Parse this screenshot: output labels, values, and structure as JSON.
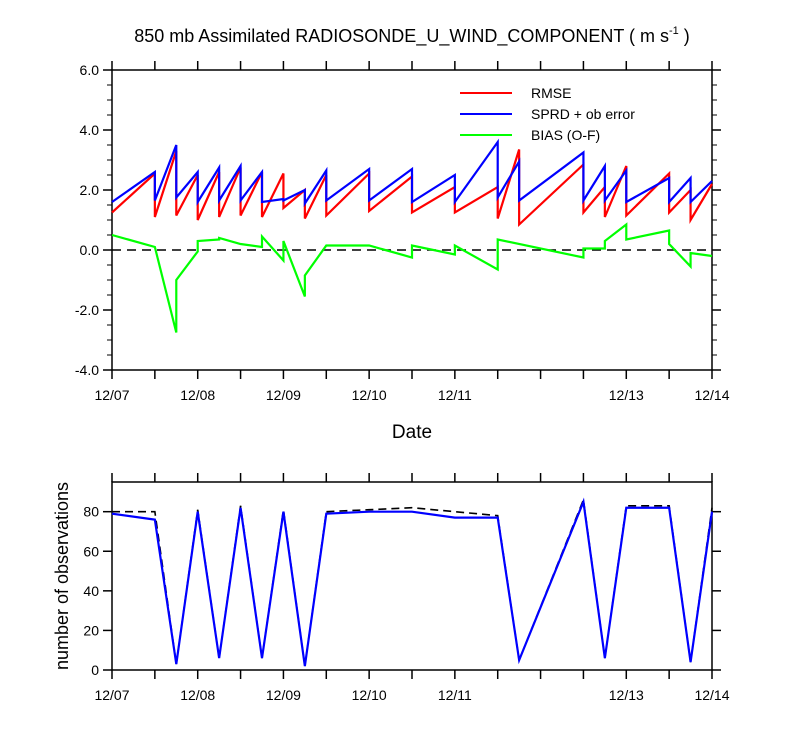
{
  "chart_data": [
    {
      "type": "line",
      "title": "850 mb Assimilated RADIOSONDE_U_WIND_COMPONENT ( m s",
      "title_superscript": "-1",
      "title_suffix": " )",
      "xlabel": "Date",
      "ylabel": "",
      "x_ticks": [
        "12/07",
        "12/08",
        "12/09",
        "12/10",
        "12/11",
        "12/13",
        "12/14"
      ],
      "x_tick_days": [
        0,
        1,
        2,
        3,
        4,
        6,
        7
      ],
      "xlim_days": [
        0,
        7
      ],
      "ylim": [
        -4,
        6
      ],
      "y_ticks": [
        "6.0",
        "4.0",
        "2.0",
        "0.0",
        "-2.0",
        "-4.0"
      ],
      "y_tick_values": [
        6,
        4,
        2,
        0,
        -2,
        -4
      ],
      "legend_position": "top-right",
      "reference_line": 0,
      "series": [
        {
          "name": "RMSE",
          "color": "#ff0000",
          "x": [
            0,
            0.5,
            0.5,
            0.75,
            0.75,
            1,
            1,
            1.25,
            1.25,
            1.5,
            1.5,
            1.75,
            1.75,
            2,
            2,
            2.25,
            2.25,
            2.5,
            2.5,
            3,
            3,
            3.5,
            3.5,
            4,
            4,
            4.5,
            4.5,
            4.75,
            4.75,
            5.5,
            5.5,
            5.75,
            5.75,
            6,
            6,
            6.5,
            6.5,
            6.75,
            6.75,
            7
          ],
          "values": [
            1.25,
            2.55,
            1.1,
            3.3,
            1.15,
            2.5,
            1.0,
            2.6,
            1.1,
            2.75,
            1.15,
            2.6,
            1.1,
            2.55,
            1.4,
            2.0,
            1.05,
            2.5,
            1.15,
            2.55,
            1.3,
            2.45,
            1.25,
            2.1,
            1.25,
            2.1,
            1.05,
            3.35,
            0.85,
            2.85,
            1.25,
            2.1,
            1.1,
            2.8,
            1.15,
            2.55,
            1.25,
            2.0,
            1.0,
            2.2
          ]
        },
        {
          "name": "SPRD + ob error",
          "color": "#0000ff",
          "x": [
            0,
            0.5,
            0.5,
            0.75,
            0.75,
            1,
            1,
            1.25,
            1.25,
            1.5,
            1.5,
            1.75,
            1.75,
            2,
            2,
            2.25,
            2.25,
            2.5,
            2.5,
            3,
            3,
            3.5,
            3.5,
            4,
            4,
            4.5,
            4.5,
            4.75,
            4.75,
            5.5,
            5.5,
            5.75,
            5.75,
            6,
            6,
            6.5,
            6.5,
            6.75,
            6.75,
            7
          ],
          "values": [
            1.6,
            2.6,
            1.65,
            3.5,
            1.75,
            2.6,
            1.6,
            2.75,
            1.65,
            2.8,
            1.65,
            2.6,
            1.6,
            1.7,
            1.65,
            2.0,
            1.55,
            2.65,
            1.65,
            2.7,
            1.65,
            2.7,
            1.6,
            2.5,
            1.6,
            3.6,
            1.75,
            2.95,
            1.65,
            3.25,
            1.65,
            2.8,
            1.65,
            2.65,
            1.6,
            2.4,
            1.6,
            2.4,
            1.6,
            2.3
          ]
        },
        {
          "name": "BIAS (O-F)",
          "color": "#00ff00",
          "x": [
            0,
            0.5,
            0.75,
            0.75,
            1,
            1,
            1.25,
            1.25,
            1.5,
            1.75,
            1.75,
            2,
            2,
            2.25,
            2.25,
            2.5,
            3,
            3.5,
            3.5,
            4,
            4,
            4.5,
            4.5,
            5.5,
            5.5,
            5.75,
            5.75,
            6,
            6,
            6.5,
            6.5,
            6.75,
            6.75,
            7
          ],
          "values": [
            0.5,
            0.1,
            -2.75,
            -1.0,
            -0.05,
            0.3,
            0.35,
            0.4,
            0.2,
            0.1,
            0.45,
            -0.35,
            0.3,
            -1.55,
            -0.85,
            0.15,
            0.15,
            -0.25,
            0.15,
            -0.15,
            0.15,
            -0.65,
            0.35,
            -0.25,
            0.05,
            0.05,
            0.3,
            0.85,
            0.35,
            0.65,
            0.2,
            -0.55,
            -0.1,
            -0.2
          ]
        }
      ]
    },
    {
      "type": "line",
      "title": "",
      "xlabel": "",
      "ylabel": "number of observations",
      "x_ticks": [
        "12/07",
        "12/08",
        "12/09",
        "12/10",
        "12/11",
        "12/13",
        "12/14"
      ],
      "x_tick_days": [
        0,
        1,
        2,
        3,
        4,
        6,
        7
      ],
      "xlim_days": [
        0,
        7
      ],
      "ylim": [
        0,
        95
      ],
      "y_ticks": [
        "80",
        "60",
        "40",
        "20",
        "0"
      ],
      "y_tick_values": [
        80,
        60,
        40,
        20,
        0
      ],
      "series": [
        {
          "color": "#000000",
          "dashed": true,
          "x": [
            0,
            0.5,
            0.75,
            1,
            1.25,
            1.5,
            1.75,
            2,
            2.25,
            2.5,
            3,
            3.5,
            4,
            4.5,
            4.75,
            5.5,
            5.75,
            6,
            6.5,
            6.75,
            7
          ],
          "values": [
            80,
            80,
            3,
            81,
            6,
            83,
            6,
            81,
            2,
            80,
            81,
            82,
            80,
            78,
            5,
            86,
            6,
            83,
            83,
            4,
            82
          ]
        },
        {
          "color": "#0000ff",
          "dashed": false,
          "x": [
            0,
            0.5,
            0.75,
            1,
            1.25,
            1.5,
            1.75,
            2,
            2.25,
            2.5,
            3,
            3.5,
            4,
            4.5,
            4.75,
            5.5,
            5.75,
            6,
            6.5,
            6.75,
            7
          ],
          "values": [
            79,
            76,
            3,
            80,
            6,
            82,
            6,
            80,
            2,
            79,
            80,
            80,
            77,
            77,
            5,
            85,
            6,
            82,
            82,
            4,
            80
          ]
        }
      ]
    }
  ]
}
